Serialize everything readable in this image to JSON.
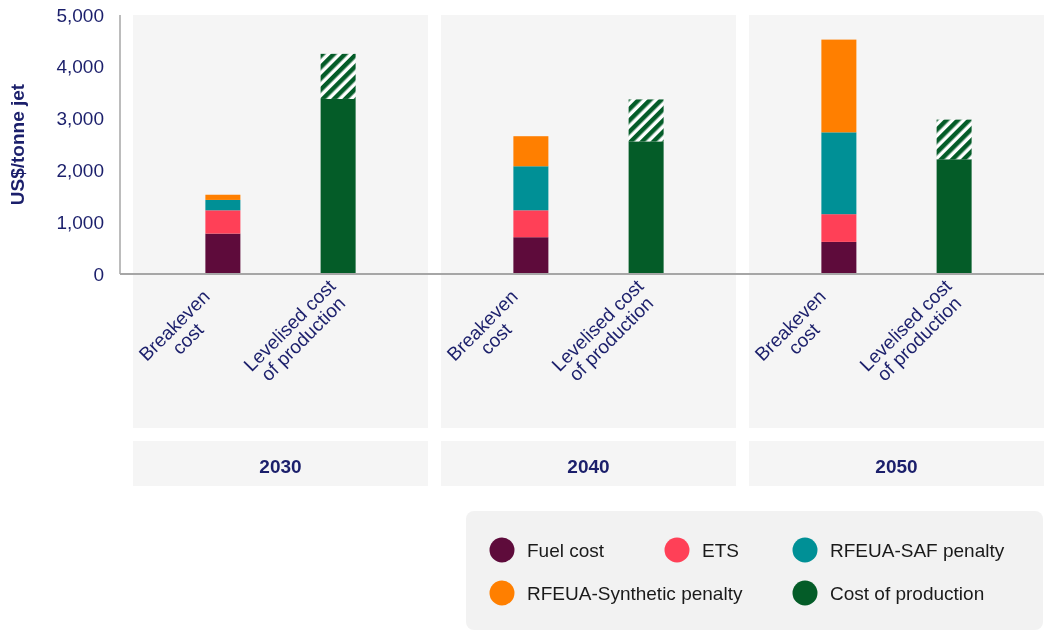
{
  "chart_data": [
    {
      "type": "bar",
      "xlabel": "2030",
      "ylabel": "US$/tonne jet",
      "categories": [
        "Breakeven cost",
        "Levelised cost of production"
      ],
      "stacked": true,
      "ylim": [
        0,
        5000
      ],
      "yticks": [
        0,
        {
          "value": 1000,
          "label": "1,000"
        },
        {
          "value": 2000,
          "label": "2,000"
        },
        {
          "value": 3000,
          "label": "3,000"
        },
        {
          "value": 4000,
          "label": "4,000"
        },
        {
          "value": 5000,
          "label": "5,000"
        }
      ],
      "legend": "bottom right",
      "series": [
        {
          "name": "Fuel cost",
          "color": "#5e0b3b",
          "values": [
            780,
            null
          ]
        },
        {
          "name": "ETS",
          "color": "#ff4057",
          "values": [
            450,
            null
          ]
        },
        {
          "name": "RFEUA-SAF penalty",
          "color": "#009096",
          "values": [
            200,
            null
          ]
        },
        {
          "name": "RFEUA-Synthetic penalty",
          "color": "#ff7f00",
          "values": [
            100,
            null
          ]
        },
        {
          "name": "Cost of production",
          "color": "#045c28",
          "values": [
            null,
            3380
          ]
        },
        {
          "color": "#045c28",
          "values": [
            null,
            870
          ]
        }
      ]
    },
    {
      "type": "bar",
      "xlabel": "2040",
      "categories": [
        "Breakeven cost",
        "Levelised cost of production"
      ],
      "stacked": true,
      "ylim": [
        0,
        5000
      ],
      "tick_labels": "x",
      "series": [
        {
          "color": "#5e0b3b",
          "values": [
            710,
            null
          ]
        },
        {
          "color": "#ff4057",
          "values": [
            520,
            null
          ]
        },
        {
          "color": "#009096",
          "values": [
            850,
            null
          ]
        },
        {
          "color": "#ff7f00",
          "values": [
            580,
            null
          ]
        },
        {
          "color": "#045c28",
          "values": [
            null,
            2560
          ]
        },
        {
          "color": "#045c28",
          "values": [
            null,
            810
          ]
        }
      ]
    },
    {
      "type": "bar",
      "xlabel": "2050",
      "categories": [
        "Breakeven cost",
        "Levelised cost of production"
      ],
      "stacked": true,
      "ylim": [
        0,
        5000
      ],
      "tick_labels": "x",
      "series": [
        {
          "color": "#5e0b3b",
          "values": [
            620,
            null
          ]
        },
        {
          "color": "#ff4057",
          "values": [
            535,
            null
          ]
        },
        {
          "color": "#009096",
          "values": [
            1580,
            null
          ]
        },
        {
          "color": "#ff7f00",
          "values": [
            1790,
            null
          ]
        },
        {
          "color": "#045c28",
          "values": [
            null,
            2215
          ]
        },
        {
          "color": "#045c28",
          "values": [
            null,
            765
          ]
        }
      ]
    }
  ]
}
